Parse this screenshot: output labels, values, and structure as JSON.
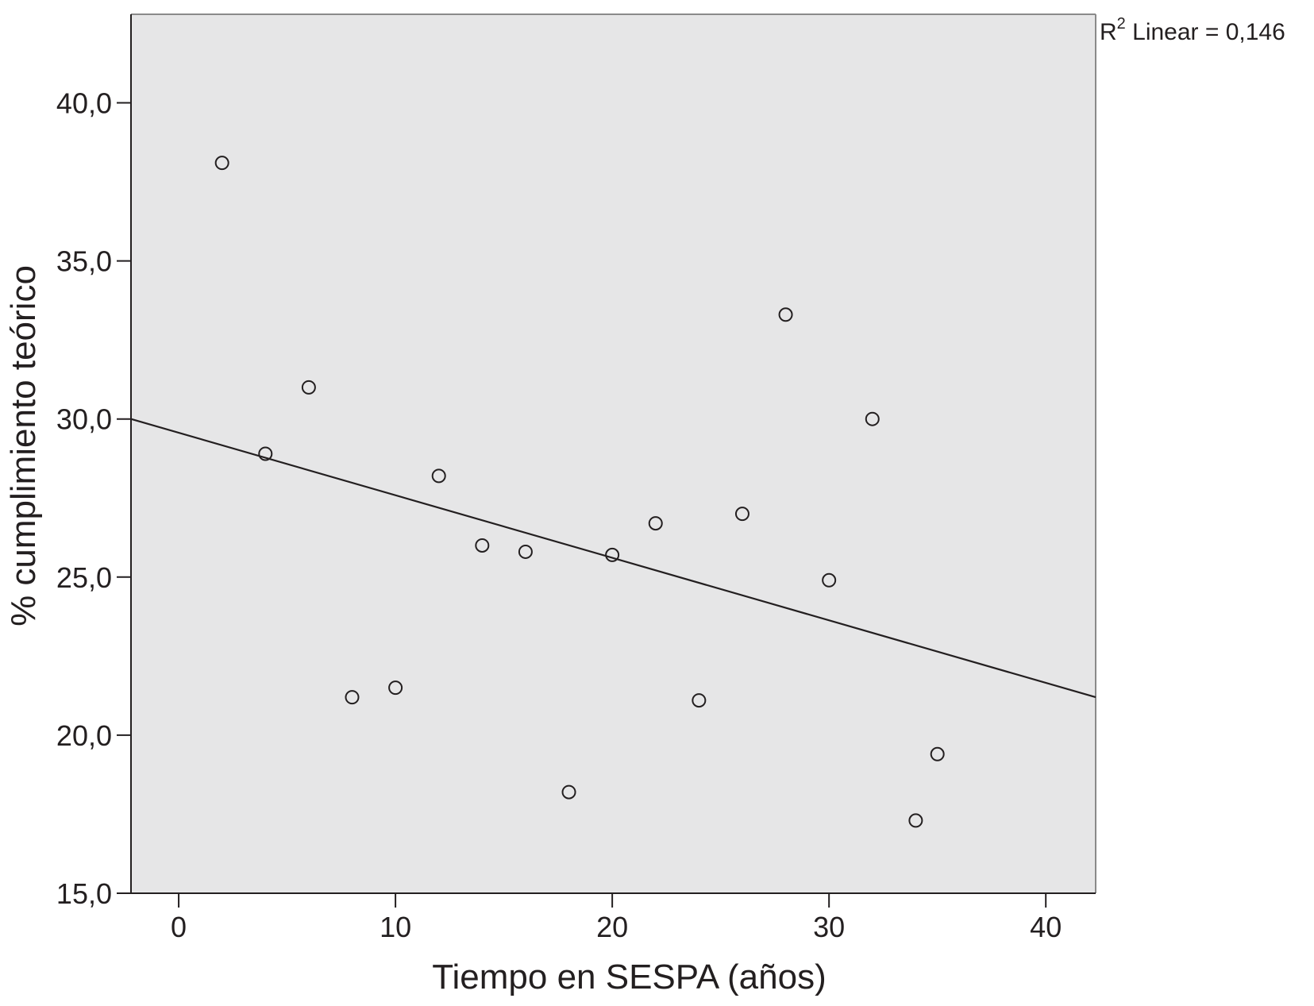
{
  "chart_data": {
    "type": "scatter",
    "title": "",
    "xlabel": "Tiempo en SESPA (años)",
    "ylabel": "% cumplimiento teórico",
    "xlim": [
      -2.2,
      42.3
    ],
    "ylim": [
      15.0,
      42.8
    ],
    "x_ticks": [
      0,
      10,
      20,
      30,
      40
    ],
    "x_tick_labels": [
      "0",
      "10",
      "20",
      "30",
      "40"
    ],
    "y_ticks": [
      15,
      20,
      25,
      30,
      35,
      40
    ],
    "y_tick_labels": [
      "15,0",
      "20,0",
      "25,0",
      "30,0",
      "35,0",
      "40,0"
    ],
    "grid": false,
    "background_color": "#e6e6e7",
    "point_style": "open-circle",
    "points": [
      {
        "x": 2,
        "y": 38.1
      },
      {
        "x": 4,
        "y": 28.9
      },
      {
        "x": 6,
        "y": 31.0
      },
      {
        "x": 8,
        "y": 21.2
      },
      {
        "x": 10,
        "y": 21.5
      },
      {
        "x": 12,
        "y": 28.2
      },
      {
        "x": 14,
        "y": 26.0
      },
      {
        "x": 16,
        "y": 25.8
      },
      {
        "x": 18,
        "y": 18.2
      },
      {
        "x": 20,
        "y": 25.7
      },
      {
        "x": 22,
        "y": 26.7
      },
      {
        "x": 24,
        "y": 21.1
      },
      {
        "x": 26,
        "y": 27.0
      },
      {
        "x": 28,
        "y": 33.3
      },
      {
        "x": 30,
        "y": 24.9
      },
      {
        "x": 32,
        "y": 30.0
      },
      {
        "x": 34,
        "y": 17.3
      },
      {
        "x": 35,
        "y": 19.4
      }
    ],
    "fit_line": {
      "type": "linear",
      "points": [
        [
          -2.2,
          30.0
        ],
        [
          42.3,
          21.2
        ]
      ]
    },
    "annotation": {
      "base": "R",
      "superscript": "2",
      "text": " Linear = 0,146"
    }
  },
  "colors": {
    "plot_background": "#e6e6e7",
    "axis": "#231f20",
    "text": "#231f20",
    "frame_right_top": "#8a8a8a"
  }
}
